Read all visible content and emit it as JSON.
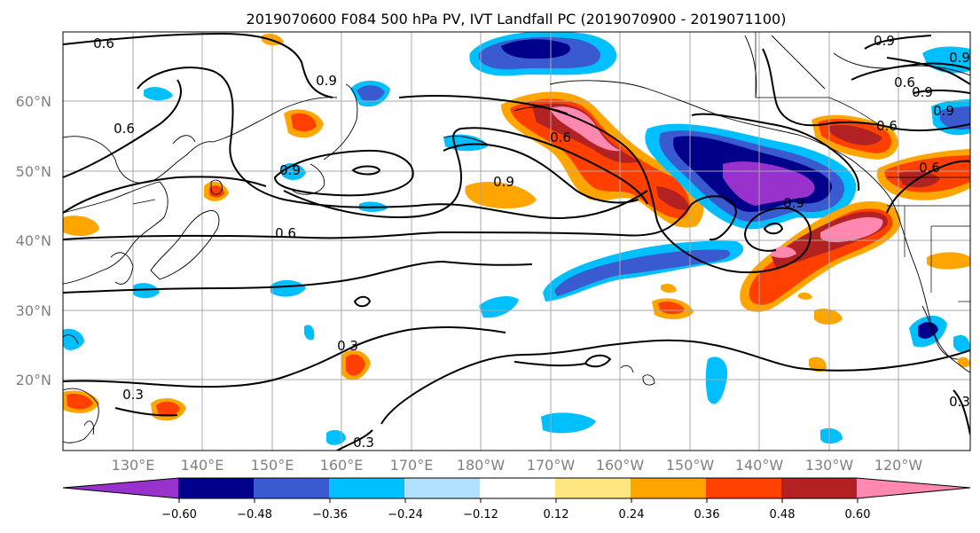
{
  "title": "2019070600 F084 500 hPa PV, IVT Landfall PC (2019070900 - 2019071100)",
  "lon_labels": [
    "130°E",
    "140°E",
    "150°E",
    "160°E",
    "170°E",
    "180°W",
    "170°W",
    "160°W",
    "150°W",
    "140°W",
    "130°W",
    "120°W"
  ],
  "lat_labels": [
    "60°N",
    "50°N",
    "40°N",
    "30°N",
    "20°N"
  ],
  "colorbar": {
    "ticks": [
      "−0.60",
      "−0.48",
      "−0.36",
      "−0.24",
      "−0.12",
      "0.12",
      "0.24",
      "0.36",
      "0.48",
      "0.60"
    ],
    "colors": [
      "#9932CC",
      "#00008B",
      "#3A5BD0",
      "#00BFFF",
      "#B0E2FF",
      "#FFFFFF",
      "#FFE680",
      "#FFA500",
      "#FF4000",
      "#B22222",
      "#FF88B0"
    ]
  },
  "contour_labels": [
    "0.6",
    "0.9",
    "0.9",
    "0.6",
    "0.9",
    "0.6",
    "0.6",
    "0.9",
    "0.6",
    "0.9",
    "0.9",
    "0.6",
    "0.3",
    "0.3",
    "0.3",
    "0.3",
    "0.6",
    "0.9",
    "0.9"
  ]
}
